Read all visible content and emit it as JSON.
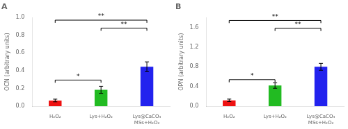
{
  "chart_data": [
    {
      "type": "bar",
      "title": "A",
      "ylabel": "OCN (arbitrary units)",
      "categories": [
        "H₂O₂",
        "Lys+H₂O₂",
        "Lys@CaCO₃\nMSs+H₂O₂"
      ],
      "values": [
        0.065,
        0.185,
        0.445
      ],
      "errors": [
        0.015,
        0.04,
        0.055
      ],
      "colors": [
        "#ee1111",
        "#22bb22",
        "#2222ee"
      ],
      "ylim": [
        0,
        1.0
      ],
      "yticks": [
        {
          "value": 0,
          "label": "0.0"
        },
        0.2,
        0.4,
        0.6,
        0.8,
        {
          "value": 1,
          "label": "1.0"
        }
      ],
      "grid": false,
      "annotations": [
        {
          "from": "H₂O₂",
          "to": "Lys+H₂O₂",
          "y": 0.295,
          "label": "*"
        },
        {
          "from": "H₂O₂",
          "to": "Lys@CaCO₃\nMSs+H₂O₂",
          "y": 0.97,
          "label": "**"
        },
        {
          "from": "Lys+H₂O₂",
          "to": "Lys@CaCO₃\nMSs+H₂O₂",
          "y": 0.88,
          "label": "**"
        }
      ]
    },
    {
      "type": "bar",
      "title": "B",
      "ylabel": "OPN (arbitrary units)",
      "categories": [
        "H₂O₂",
        "Lys+H₂O₂",
        "Lys@CaCO₃\nMSs+H₂O₂"
      ],
      "values": [
        0.12,
        0.42,
        0.8
      ],
      "errors": [
        0.025,
        0.055,
        0.07
      ],
      "colors": [
        "#ee1111",
        "#22bb22",
        "#2222ee"
      ],
      "ylim": [
        0,
        1.8
      ],
      "yticks": [
        {
          "value": 0,
          "label": "0.0"
        },
        0.4,
        0.8,
        1.2,
        1.6
      ],
      "grid": false,
      "annotations": [
        {
          "from": "H₂O₂",
          "to": "Lys+H₂O₂",
          "y": 0.54,
          "label": "*"
        },
        {
          "from": "H₂O₂",
          "to": "Lys@CaCO₃\nMSs+H₂O₂",
          "y": 1.74,
          "label": "**"
        },
        {
          "from": "Lys+H₂O₂",
          "to": "Lys@CaCO₃\nMSs+H₂O₂",
          "y": 1.58,
          "label": "**"
        }
      ]
    }
  ]
}
